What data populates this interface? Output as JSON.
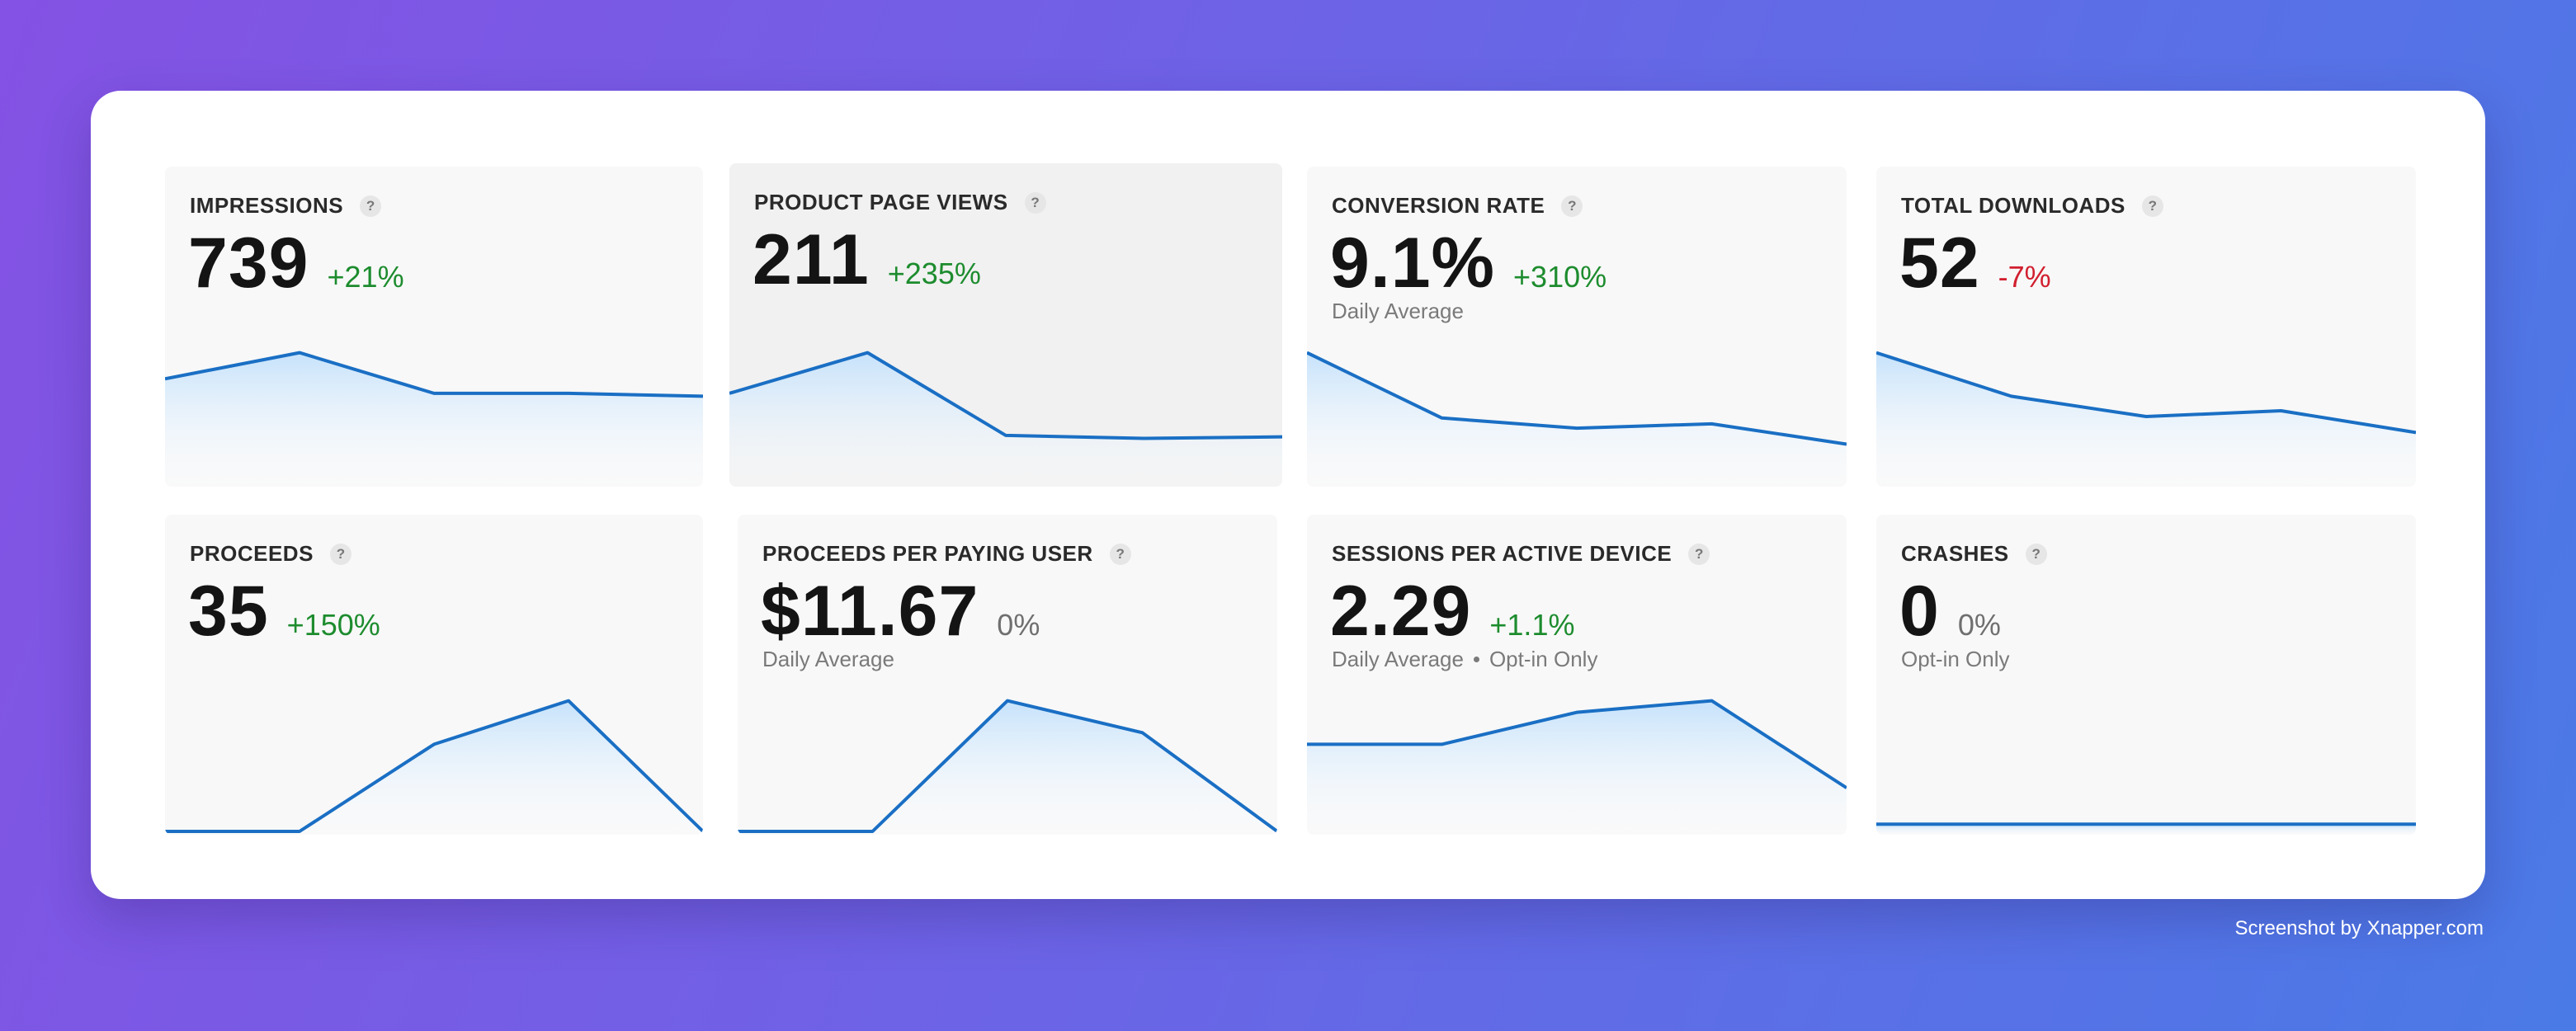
{
  "cards": [
    {
      "title": "IMPRESSIONS",
      "help": "?",
      "value": "739",
      "delta": "+21%",
      "delta_type": "positive",
      "sub": [],
      "trend": [
        0.72,
        0.9,
        0.62,
        0.62,
        0.6
      ]
    },
    {
      "title": "PRODUCT PAGE VIEWS",
      "help": "?",
      "value": "211",
      "delta": "+235%",
      "delta_type": "positive",
      "sub": [],
      "trend": [
        0.62,
        0.9,
        0.33,
        0.31,
        0.32
      ]
    },
    {
      "title": "CONVERSION RATE",
      "help": "?",
      "value": "9.1%",
      "delta": "+310%",
      "delta_type": "positive",
      "sub": [
        "Daily Average"
      ],
      "trend": [
        0.9,
        0.45,
        0.38,
        0.41,
        0.27
      ]
    },
    {
      "title": "TOTAL DOWNLOADS",
      "help": "?",
      "value": "52",
      "delta": "-7%",
      "delta_type": "negative",
      "sub": [],
      "trend": [
        0.9,
        0.6,
        0.46,
        0.5,
        0.35
      ]
    },
    {
      "title": "PROCEEDS",
      "help": "?",
      "value": "35",
      "delta": "+150%",
      "delta_type": "positive",
      "sub": [],
      "trend": [
        0.0,
        0.0,
        0.6,
        0.9,
        0.0
      ]
    },
    {
      "title": "PROCEEDS PER PAYING USER",
      "help": "?",
      "value": "$11.67",
      "delta": "0%",
      "delta_type": "neutral",
      "sub": [
        "Daily Average"
      ],
      "trend": [
        0.0,
        0.0,
        0.9,
        0.68,
        0.0
      ]
    },
    {
      "title": "SESSIONS PER ACTIVE DEVICE",
      "help": "?",
      "value": "2.29",
      "delta": "+1.1%",
      "delta_type": "positive",
      "sub": [
        "Daily Average",
        "Opt-in Only"
      ],
      "trend": [
        0.6,
        0.6,
        0.82,
        0.9,
        0.3
      ]
    },
    {
      "title": "CRASHES",
      "help": "?",
      "value": "0",
      "delta": "0%",
      "delta_type": "neutral",
      "sub": [
        "Opt-in Only"
      ],
      "trend": [
        0.05,
        0.05,
        0.05,
        0.05,
        0.05
      ]
    }
  ],
  "colors": {
    "line": "#1a6fc4",
    "fill_top": "#c6e2fb",
    "positive": "#1d8c2e",
    "negative": "#d11f2f"
  },
  "footer": {
    "credit": "Screenshot by Xnapper.com"
  }
}
